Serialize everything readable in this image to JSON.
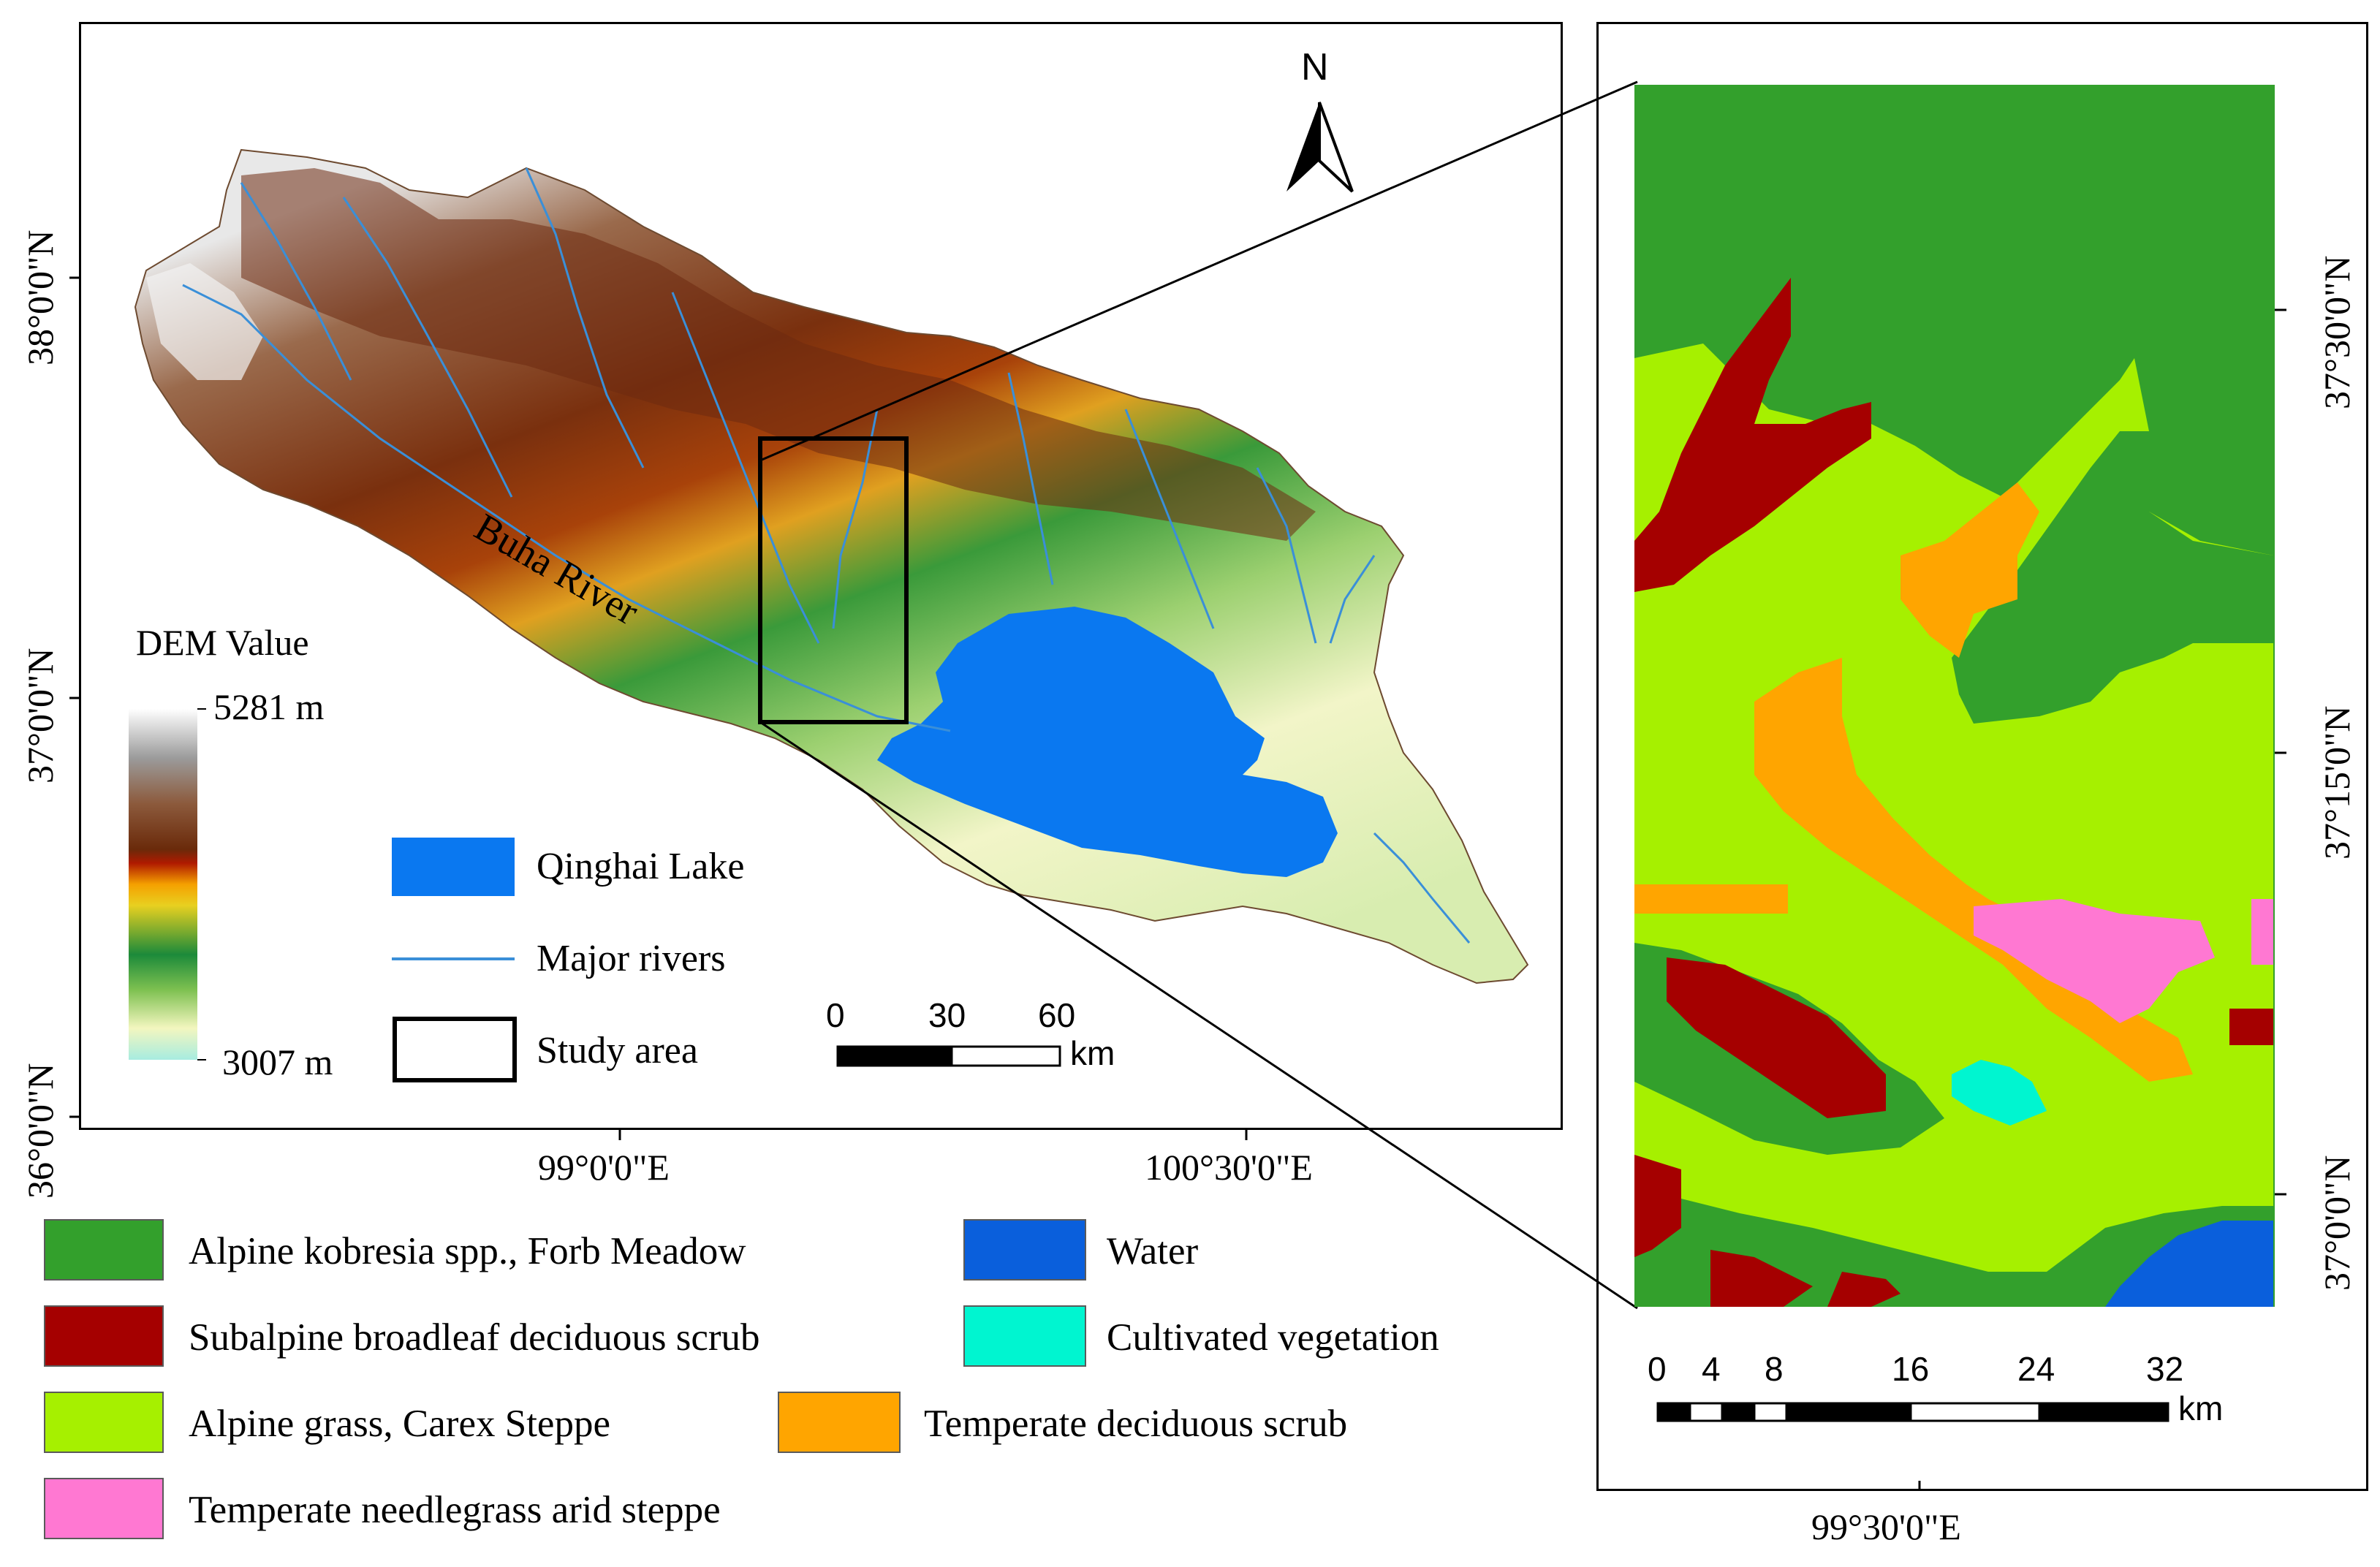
{
  "main_map": {
    "lat_labels": [
      "38°0'0\"N",
      "37°0'0\"N",
      "36°0'0\"N"
    ],
    "lon_labels": [
      "99°0'0\"E",
      "100°30'0\"E"
    ],
    "north_label": "N",
    "river_label": "Buha River",
    "dem_legend": {
      "title": "DEM Value",
      "max_label": "5281 m",
      "min_label": "3007 m",
      "gradient_colors": [
        "#ffffff",
        "#9b9b9b",
        "#8c5a3c",
        "#6a2a0a",
        "#b01a00",
        "#f5a000",
        "#e8d020",
        "#1c8a3a",
        "#7dc050",
        "#f3f6bf",
        "#a7ece0"
      ]
    },
    "feature_legend": {
      "lake_label": "Qinghai Lake",
      "rivers_label": "Major rivers",
      "study_area_label": "Study area",
      "lake_color": "#0a78f0",
      "river_color": "#3a8fd8"
    },
    "scale_bar": {
      "ticks": [
        "0",
        "30",
        "60"
      ],
      "unit": "km"
    }
  },
  "inset_map": {
    "lat_labels": [
      "37°30'0\"N",
      "37°15'0\"N",
      "37°0'0\"N"
    ],
    "lon_label": "99°30'0\"E",
    "scale_bar": {
      "ticks": [
        "0",
        "4",
        "8",
        "16",
        "24",
        "32"
      ],
      "unit": "km"
    }
  },
  "vegetation_legend": [
    {
      "label": "Alpine kobresia spp., Forb Meadow",
      "color": "#33a02c"
    },
    {
      "label": "Subalpine broadleaf deciduous scrub",
      "color": "#a50000"
    },
    {
      "label": "Alpine grass, Carex Steppe",
      "color": "#a6f000"
    },
    {
      "label": "Temperate needlegrass arid steppe",
      "color": "#ff78d2"
    },
    {
      "label": "Water",
      "color": "#0a5fdc"
    },
    {
      "label": "Cultivated vegetation",
      "color": "#00f5d0"
    },
    {
      "label": "Temperate deciduous scrub",
      "color": "#ffa500"
    }
  ]
}
